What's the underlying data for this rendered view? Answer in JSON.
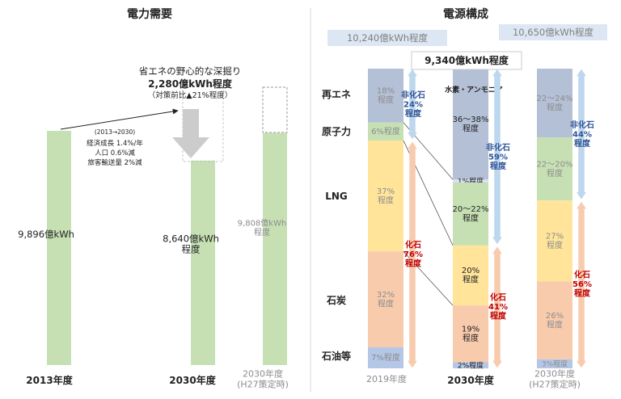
{
  "colors": {
    "demand_bar": "#c6e0b4",
    "renewable": "#b4c0d6",
    "nuclear": "#c6e0b4",
    "lng": "#ffe49a",
    "coal": "#f8cbad",
    "oil": "#b4c7e7",
    "hydrogen": "#d9e1f2",
    "arrow_blue": "#bdd7ee",
    "arrow_orange": "#f8cbad",
    "label_blue": "#2f5597",
    "label_red": "#c00000"
  },
  "chart_data": [
    {
      "type": "bar",
      "title": "電力需要",
      "categories": [
        "2013年度",
        "2030年度",
        "2030年度\n(H27策定時)"
      ],
      "values": [
        9896,
        8640,
        9808
      ],
      "unit": "億kWh",
      "value_labels": [
        "9,896億kWh",
        "8,640億kWh\n程度",
        "9,808億kWh\n程度"
      ],
      "ylim": [
        0,
        11000
      ],
      "annotations": {
        "savings_title": "省エネの野心的な深掘り",
        "savings_amount": "2,280億kWh程度",
        "savings_note": "（対策前比▲21%程度）",
        "assumptions": [
          "(2013→2030)",
          "経済成長 1.4%/年",
          "人口 0.6%減",
          "旅客輸送量 2%減"
        ]
      }
    },
    {
      "type": "bar",
      "stacked": true,
      "normalized": true,
      "title": "電源構成",
      "categories": [
        "2019年度",
        "2030年度",
        "2030年度\n(H27策定時)"
      ],
      "totals": [
        "10,240億kWh程度",
        "9,340億kWh程度",
        "10,650億kWh程度"
      ],
      "row_labels": [
        "再エネ",
        "原子力",
        "LNG",
        "石炭",
        "石油等"
      ],
      "series": [
        {
          "name": "再エネ",
          "values": [
            18,
            37,
            23
          ],
          "labels": [
            "18%\n程度",
            "36～38%\n程度",
            "22～24%\n程度"
          ]
        },
        {
          "name": "水素・アンモニア",
          "values": [
            0,
            1,
            0
          ],
          "labels": [
            "",
            "1%程度",
            ""
          ]
        },
        {
          "name": "原子力",
          "values": [
            6,
            21,
            21
          ],
          "labels": [
            "6%程度",
            "20～22%\n程度",
            "22～20%\n程度"
          ]
        },
        {
          "name": "LNG",
          "values": [
            37,
            20,
            27
          ],
          "labels": [
            "37%\n程度",
            "20%\n程度",
            "27%\n程度"
          ]
        },
        {
          "name": "石炭",
          "values": [
            32,
            19,
            26
          ],
          "labels": [
            "32%\n程度",
            "19%\n程度",
            "26%\n程度"
          ]
        },
        {
          "name": "石油等",
          "values": [
            7,
            2,
            3
          ],
          "labels": [
            "7%程度",
            "2%程度",
            "3%程度"
          ]
        }
      ],
      "groups": {
        "non_fossil": [
          "非化石\n24%\n程度",
          "非化石\n59%\n程度",
          "非化石\n44%\n程度"
        ],
        "fossil": [
          "化石\n76%\n程度",
          "化石\n41%\n程度",
          "化石\n56%\n程度"
        ]
      }
    }
  ]
}
